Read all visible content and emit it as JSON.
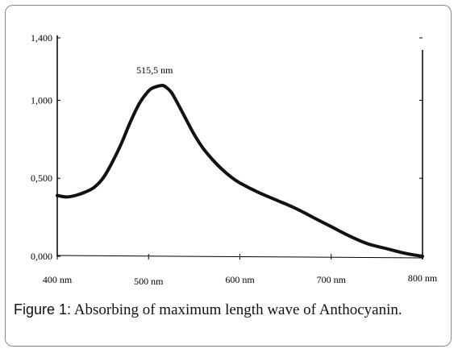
{
  "caption": {
    "label": "Figure 1:",
    "text": " Absorbing of maximum length wave of Anthocyanin."
  },
  "chart_data": {
    "type": "line",
    "title": "",
    "xlabel": "",
    "ylabel": "",
    "xlim": [
      400,
      800
    ],
    "ylim": [
      0,
      1.4
    ],
    "x_ticks": [
      400,
      500,
      600,
      700,
      800
    ],
    "x_tick_labels": [
      "400 nm",
      "500 nm",
      "600 nm",
      "700 nm",
      "800 nm"
    ],
    "y_ticks": [
      0,
      0.5,
      1.0,
      1.4
    ],
    "y_tick_labels": [
      "0,000",
      "0,500",
      "1,000",
      "1,400"
    ],
    "grid": false,
    "legend": "none",
    "annotations": [
      {
        "text": "515,5 nm",
        "x": 515.5,
        "y": 1.09
      }
    ],
    "series": [
      {
        "color": "#111111",
        "x": [
          400,
          410,
          420,
          430,
          440,
          450,
          460,
          470,
          480,
          490,
          500,
          505,
          510,
          515.5,
          520,
          525,
          530,
          540,
          550,
          560,
          570,
          580,
          590,
          600,
          620,
          640,
          660,
          680,
          700,
          720,
          740,
          760,
          780,
          800
        ],
        "y": [
          0.39,
          0.38,
          0.39,
          0.41,
          0.44,
          0.5,
          0.6,
          0.72,
          0.86,
          0.98,
          1.06,
          1.08,
          1.09,
          1.095,
          1.08,
          1.05,
          1.0,
          0.89,
          0.78,
          0.69,
          0.62,
          0.56,
          0.51,
          0.47,
          0.41,
          0.36,
          0.31,
          0.25,
          0.19,
          0.13,
          0.08,
          0.05,
          0.02,
          0.0
        ]
      }
    ]
  }
}
